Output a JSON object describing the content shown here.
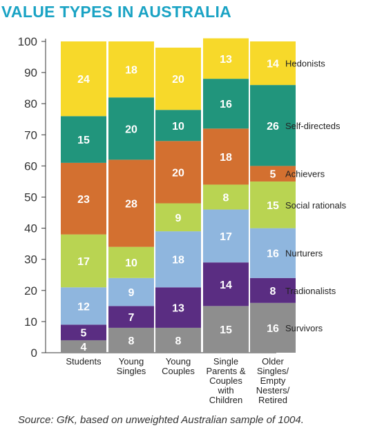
{
  "title": "VALUE TYPES IN AUSTRALIA",
  "source": "Source: GfK, based on unweighted Australian sample of 1004.",
  "chart_data": {
    "type": "bar",
    "stacked": true,
    "ylim": [
      0,
      100
    ],
    "yticks": [
      0,
      10,
      20,
      30,
      40,
      50,
      60,
      70,
      80,
      90,
      100
    ],
    "categories": [
      [
        "Students"
      ],
      [
        "Young",
        "Singles"
      ],
      [
        "Young",
        "Couples"
      ],
      [
        "Single",
        "Parents &",
        "Couples",
        "with",
        "Children"
      ],
      [
        "Older",
        "Singles/",
        "Empty",
        "Nesters/",
        "Retired"
      ]
    ],
    "series": [
      {
        "name": "Survivors",
        "color": "#8e8e8e",
        "values": [
          4,
          8,
          8,
          15,
          16
        ]
      },
      {
        "name": "Tradionalists",
        "color": "#5a2d82",
        "values": [
          5,
          7,
          13,
          14,
          8
        ]
      },
      {
        "name": "Nurturers",
        "color": "#8fb6de",
        "values": [
          12,
          9,
          18,
          17,
          16
        ]
      },
      {
        "name": "Social rationals",
        "color": "#b9d452",
        "values": [
          17,
          10,
          9,
          8,
          15
        ]
      },
      {
        "name": "Achievers",
        "color": "#d37030",
        "values": [
          23,
          28,
          20,
          18,
          5
        ]
      },
      {
        "name": "Self-directeds",
        "color": "#21957c",
        "values": [
          15,
          20,
          10,
          16,
          26
        ]
      },
      {
        "name": "Hedonists",
        "color": "#f7d92a",
        "values": [
          24,
          18,
          20,
          13,
          14
        ]
      }
    ],
    "legend_position": "right"
  }
}
